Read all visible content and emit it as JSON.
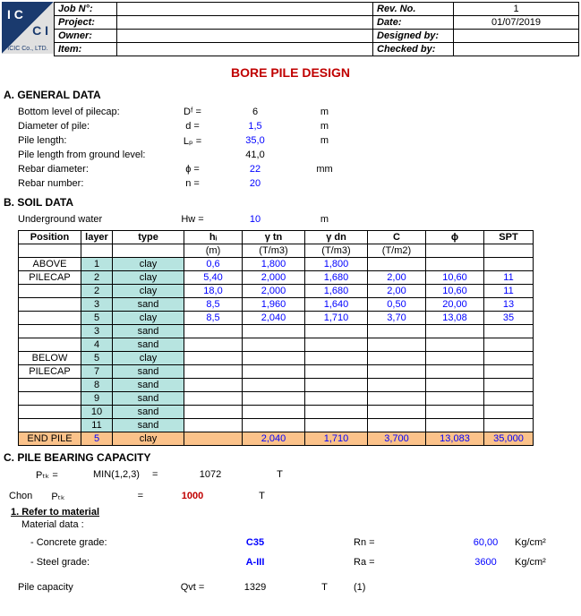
{
  "header": {
    "job": "Job N°:",
    "proj": "Project:",
    "own": "Owner:",
    "item": "Item:",
    "rev": "Rev. No.",
    "date": "Date:",
    "des": "Designed by:",
    "chk": "Checked by:",
    "revv": "1",
    "datev": "01/07/2019",
    "logo": "ICIC Co., LTD."
  },
  "title": "BORE PILE DESIGN",
  "A": {
    "h": "A. GENERAL DATA",
    "r": [
      [
        "Bottom level of pilecap:",
        "Dᶠ =",
        "6",
        "m"
      ],
      [
        "Diameter of pile:",
        "d =",
        "1,5",
        "m"
      ],
      [
        "Pile length:",
        "Lₚ =",
        "35,0",
        "m"
      ],
      [
        "Pile length from ground level:",
        "",
        "41,0",
        ""
      ],
      [
        "Rebar diameter:",
        "ɸ =",
        "22",
        "mm"
      ],
      [
        "Rebar number:",
        "n =",
        "20",
        ""
      ]
    ],
    "blue": [
      1,
      2,
      4,
      5
    ]
  },
  "B": {
    "h": "B. SOIL DATA",
    "ug": [
      "Underground water",
      "Hw =",
      "10",
      "m"
    ],
    "th": [
      "Position",
      "layer",
      "type",
      "hᵢ",
      "γ tn",
      "γ dn",
      "C",
      "ɸ",
      "SPT"
    ],
    "u": [
      "",
      "",
      "",
      "(m)",
      "(T/m3)",
      "(T/m3)",
      "(T/m2)",
      "",
      ""
    ],
    "rows": [
      {
        "p": "ABOVE",
        "l": "1",
        "t": "clay",
        "v": [
          "0,6",
          "1,800",
          "1,800",
          "",
          "",
          ""
        ]
      },
      {
        "p": "PILECAP",
        "l": "2",
        "t": "clay",
        "v": [
          "5,40",
          "2,000",
          "1,680",
          "2,00",
          "10,60",
          "11"
        ]
      },
      {
        "p": "",
        "l": "2",
        "t": "clay",
        "v": [
          "18,0",
          "2,000",
          "1,680",
          "2,00",
          "10,60",
          "11"
        ]
      },
      {
        "p": "",
        "l": "3",
        "t": "sand",
        "v": [
          "8,5",
          "1,960",
          "1,640",
          "0,50",
          "20,00",
          "13"
        ]
      },
      {
        "p": "",
        "l": "5",
        "t": "clay",
        "v": [
          "8,5",
          "2,040",
          "1,710",
          "3,70",
          "13,08",
          "35"
        ]
      },
      {
        "p": "",
        "l": "3",
        "t": "sand",
        "v": [
          "",
          "",
          "",
          "",
          "",
          ""
        ]
      },
      {
        "p": "",
        "l": "4",
        "t": "sand",
        "v": [
          "",
          "",
          "",
          "",
          "",
          ""
        ]
      },
      {
        "p": "BELOW",
        "l": "5",
        "t": "clay",
        "v": [
          "",
          "",
          "",
          "",
          "",
          ""
        ]
      },
      {
        "p": "PILECAP",
        "l": "7",
        "t": "sand",
        "v": [
          "",
          "",
          "",
          "",
          "",
          ""
        ]
      },
      {
        "p": "",
        "l": "8",
        "t": "sand",
        "v": [
          "",
          "",
          "",
          "",
          "",
          ""
        ]
      },
      {
        "p": "",
        "l": "9",
        "t": "sand",
        "v": [
          "",
          "",
          "",
          "",
          "",
          ""
        ]
      },
      {
        "p": "",
        "l": "10",
        "t": "sand",
        "v": [
          "",
          "",
          "",
          "",
          "",
          ""
        ]
      },
      {
        "p": "",
        "l": "11",
        "t": "sand",
        "v": [
          "",
          "",
          "",
          "",
          "",
          ""
        ]
      }
    ],
    "end": {
      "p": "END PILE",
      "l": "5",
      "t": "clay",
      "v": [
        "",
        "2,040",
        "1,710",
        "3,700",
        "13,083",
        "35,000"
      ]
    }
  },
  "C": {
    "h": "C. PILE BEARING CAPACITY",
    "ptk": [
      "Pₜₖ =",
      "MIN(1,2,3)",
      "=",
      "1072",
      "T"
    ],
    "chon": [
      "Chon",
      "Pₜₖ",
      "=",
      "1000",
      "T"
    ],
    "ref": "1. Refer to material",
    "mat": "Material data :",
    "conc": [
      "- Concrete grade:",
      "",
      "C35",
      "",
      "Rn =",
      "",
      "60,00",
      "Kg/cm²"
    ],
    "steel": [
      "- Steel grade:",
      "",
      "A-III",
      "",
      "Ra =",
      "",
      "3600",
      "Kg/cm²"
    ],
    "cap": [
      "Pile capacity",
      "Qvt =",
      "1329",
      "T",
      "(1)"
    ]
  }
}
